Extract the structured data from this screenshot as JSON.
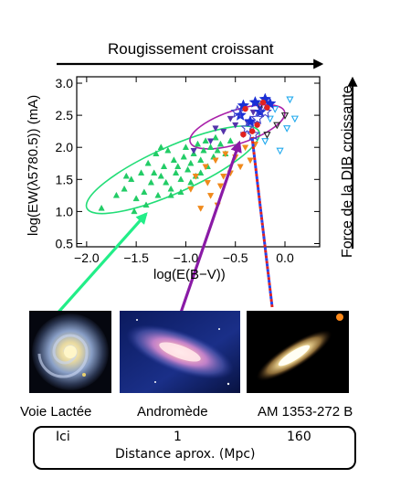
{
  "header": {
    "top_title": "Rougissement croissant",
    "side_title": "Force de la DIB croissante"
  },
  "chart_data": {
    "type": "scatter",
    "xlabel": "log(E(B−V))",
    "ylabel": "log(EW(λ5780.5)) (mA)",
    "xlim": [
      -2.1,
      0.35
    ],
    "ylim": [
      0.45,
      3.1
    ],
    "x_ticks": [
      "−2.0",
      "−1.5",
      "−1.0",
      "−0.5",
      "0.0"
    ],
    "x_tick_values": [
      -2.0,
      -1.5,
      -1.0,
      -0.5,
      0.0
    ],
    "y_ticks": [
      "0.5",
      "1.0",
      "1.5",
      "2.0",
      "2.5",
      "3.0"
    ],
    "y_tick_values": [
      0.5,
      1.0,
      1.5,
      2.0,
      2.5,
      3.0
    ],
    "grid": false,
    "series": [
      {
        "marker": "triangle-up",
        "color": "#22cc66",
        "filled": true,
        "points": [
          [
            -1.85,
            1.05
          ],
          [
            -1.7,
            1.25
          ],
          [
            -1.62,
            1.35
          ],
          [
            -1.55,
            1.5
          ],
          [
            -1.5,
            1.2
          ],
          [
            -1.45,
            1.6
          ],
          [
            -1.42,
            1.3
          ],
          [
            -1.38,
            1.75
          ],
          [
            -1.35,
            1.45
          ],
          [
            -1.32,
            1.6
          ],
          [
            -1.3,
            1.9
          ],
          [
            -1.28,
            1.25
          ],
          [
            -1.25,
            1.55
          ],
          [
            -1.22,
            1.7
          ],
          [
            -1.2,
            1.45
          ],
          [
            -1.18,
            1.95
          ],
          [
            -1.15,
            1.35
          ],
          [
            -1.12,
            1.8
          ],
          [
            -1.1,
            1.6
          ],
          [
            -1.08,
            1.7
          ],
          [
            -1.05,
            1.5
          ],
          [
            -1.02,
            1.85
          ],
          [
            -1.0,
            2.0
          ],
          [
            -0.98,
            1.65
          ],
          [
            -0.95,
            1.75
          ],
          [
            -0.92,
            1.9
          ],
          [
            -0.9,
            1.55
          ],
          [
            -0.88,
            2.05
          ],
          [
            -0.85,
            1.8
          ],
          [
            -0.82,
            1.95
          ],
          [
            -0.8,
            2.1
          ],
          [
            -0.78,
            1.7
          ],
          [
            -0.75,
            2.0
          ],
          [
            -0.72,
            1.85
          ],
          [
            -0.7,
            2.15
          ],
          [
            -0.68,
            1.95
          ],
          [
            -0.65,
            2.05
          ],
          [
            -0.6,
            1.9
          ],
          [
            -0.55,
            2.1
          ],
          [
            -0.5,
            2.0
          ],
          [
            -1.4,
            1.1
          ],
          [
            -1.52,
            1.0
          ],
          [
            -1.15,
            1.25
          ],
          [
            -0.95,
            1.45
          ],
          [
            -1.6,
            1.55
          ],
          [
            -1.25,
            2.0
          ],
          [
            -0.85,
            1.6
          ],
          [
            -1.05,
            1.3
          ]
        ]
      },
      {
        "marker": "triangle-down",
        "color": "#f08a1c",
        "filled": true,
        "points": [
          [
            -0.95,
            1.35
          ],
          [
            -0.9,
            1.55
          ],
          [
            -0.85,
            1.05
          ],
          [
            -0.8,
            1.7
          ],
          [
            -0.75,
            1.25
          ],
          [
            -0.7,
            1.8
          ],
          [
            -0.65,
            1.4
          ],
          [
            -0.62,
            1.55
          ],
          [
            -0.6,
            1.9
          ],
          [
            -0.55,
            1.6
          ],
          [
            -0.5,
            1.85
          ],
          [
            -0.45,
            1.7
          ],
          [
            -0.4,
            2.0
          ],
          [
            -0.35,
            1.8
          ],
          [
            -0.3,
            2.05
          ],
          [
            -0.78,
            1.45
          ],
          [
            -0.68,
            1.1
          ]
        ]
      },
      {
        "marker": "triangle-down",
        "color": "#5533aa",
        "filled": true,
        "points": [
          [
            -0.92,
            1.95
          ],
          [
            -0.75,
            2.1
          ],
          [
            -0.62,
            2.25
          ],
          [
            -0.5,
            2.35
          ],
          [
            -0.38,
            2.4
          ],
          [
            -0.32,
            2.55
          ],
          [
            -0.25,
            2.6
          ],
          [
            -0.42,
            2.2
          ],
          [
            -0.55,
            2.45
          ],
          [
            -0.7,
            2.3
          ]
        ]
      },
      {
        "marker": "triangle-down",
        "color": "#22aaee",
        "filled": false,
        "points": [
          [
            -0.15,
            2.45
          ],
          [
            -0.05,
            1.95
          ],
          [
            0.05,
            2.75
          ],
          [
            0.02,
            2.3
          ],
          [
            -0.2,
            2.1
          ],
          [
            0.1,
            2.45
          ],
          [
            -0.1,
            2.6
          ]
        ]
      },
      {
        "marker": "triangle-down",
        "color": "#222222",
        "filled": false,
        "points": [
          [
            -0.08,
            2.35
          ],
          [
            0.0,
            2.5
          ],
          [
            -0.18,
            2.2
          ],
          [
            -0.25,
            2.65
          ]
        ]
      },
      {
        "marker": "star",
        "color": "#1a2fd6",
        "filled": true,
        "points": [
          [
            -0.42,
            2.65
          ],
          [
            -0.3,
            2.7
          ],
          [
            -0.2,
            2.75
          ],
          [
            -0.35,
            2.4
          ],
          [
            -0.25,
            2.55
          ],
          [
            -0.45,
            2.5
          ],
          [
            -0.15,
            2.68
          ]
        ]
      },
      {
        "marker": "star",
        "color": "#4444cc",
        "filled": false,
        "points": [
          [
            -0.48,
            2.55
          ],
          [
            -0.38,
            2.3
          ],
          [
            -0.28,
            2.45
          ],
          [
            -0.2,
            2.55
          ],
          [
            -0.32,
            2.2
          ]
        ]
      },
      {
        "marker": "circle",
        "color": "#e02020",
        "filled": true,
        "points": [
          [
            -0.4,
            2.6
          ],
          [
            -0.33,
            2.25
          ],
          [
            -0.18,
            2.62
          ],
          [
            -0.28,
            2.35
          ],
          [
            -0.42,
            2.2
          ],
          [
            -0.22,
            2.7
          ]
        ]
      }
    ],
    "ellipses": [
      {
        "color": "#22dd77",
        "cx": -1.13,
        "cy": 1.65,
        "rx": 0.95,
        "ry": 0.36,
        "angle_deg": -24
      },
      {
        "color": "#aa22aa",
        "cx": -0.48,
        "cy": 2.32,
        "rx": 0.5,
        "ry": 0.26,
        "angle_deg": -18
      }
    ]
  },
  "galaxies": [
    {
      "name": "Voie Lactée",
      "distance": "Ici",
      "image": "milky-way-face-on-spiral"
    },
    {
      "name": "Andromède",
      "distance": "1",
      "image": "andromeda-tilted-spiral"
    },
    {
      "name": "AM 1353-272 B",
      "distance": "160",
      "image": "edge-on-galaxy"
    }
  ],
  "distance_box": {
    "caption": "Distance aprox. (Mpc)"
  },
  "colors": {
    "arrow_green": "#22ee88",
    "arrow_purple": "#8a1aa6",
    "dashed_red": "#e02020",
    "dashed_blue": "#2244ee"
  }
}
